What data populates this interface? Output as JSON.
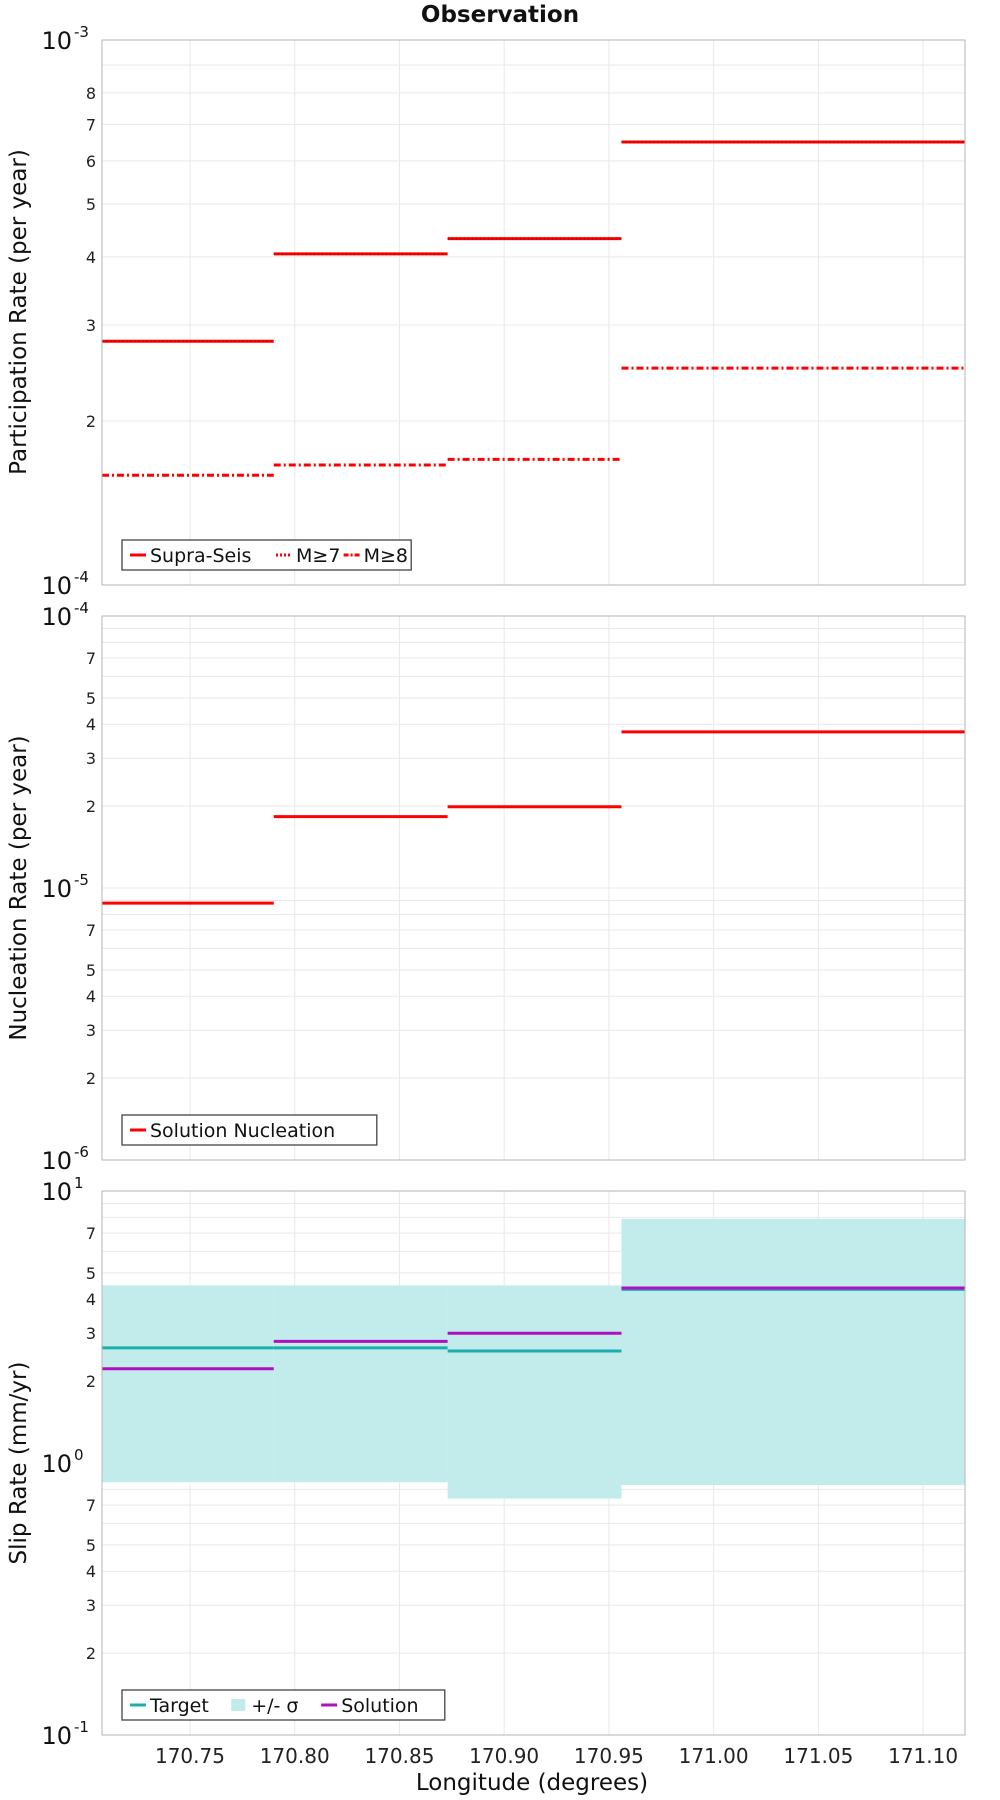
{
  "title": "Observation",
  "xlabel": "Longitude (degrees)",
  "x_ticks": [
    "170.75",
    "170.80",
    "170.85",
    "170.90",
    "170.95",
    "171.00",
    "171.05",
    "171.10"
  ],
  "chart_data": [
    {
      "type": "line",
      "ylabel": "Participation Rate (per year)",
      "yscale": "log",
      "xlim": [
        170.708,
        171.12
      ],
      "ylim": [
        0.0001,
        0.001
      ],
      "grid": true,
      "legend_position": "bottom-left",
      "y_tick_labels": {
        "minor": [
          "2",
          "3",
          "4",
          "5",
          "6",
          "7",
          "8"
        ],
        "top_base": "10",
        "top_exp": "-3",
        "bottom_base": "10",
        "bottom_exp": "-4"
      },
      "legend": [
        "Supra-Seis",
        "M≥7",
        "M≥8"
      ],
      "series": [
        {
          "name": "Supra-Seis",
          "color": "#ff0000",
          "style": "solid",
          "x": [
            [
              170.708,
              170.79
            ],
            [
              170.79,
              170.873
            ],
            [
              170.873,
              170.956
            ],
            [
              170.956,
              171.12
            ]
          ],
          "values": [
            0.00028,
            0.000405,
            0.000432,
            0.00065
          ]
        },
        {
          "name": "M≥7",
          "color": "#ff0000",
          "style": "dotted",
          "x": [
            [
              170.708,
              170.79
            ],
            [
              170.79,
              170.873
            ],
            [
              170.873,
              170.956
            ],
            [
              170.956,
              171.12
            ]
          ],
          "values": [
            0.00028,
            0.000405,
            0.000432,
            0.00065
          ]
        },
        {
          "name": "M≥8",
          "color": "#ff0000",
          "style": "dashdot",
          "x": [
            [
              170.708,
              170.79
            ],
            [
              170.79,
              170.873
            ],
            [
              170.873,
              170.956
            ],
            [
              170.956,
              171.12
            ]
          ],
          "values": [
            0.000159,
            0.000166,
            0.00017,
            0.00025
          ]
        }
      ]
    },
    {
      "type": "line",
      "ylabel": "Nucleation Rate (per year)",
      "yscale": "log",
      "xlim": [
        170.708,
        171.12
      ],
      "ylim": [
        1e-06,
        0.0001
      ],
      "grid": true,
      "legend_position": "bottom-left",
      "y_tick_labels": {
        "minor": [
          "2",
          "3",
          "4",
          "5",
          "7",
          "2",
          "3",
          "4",
          "5",
          "7"
        ],
        "top_base": "10",
        "top_exp": "-4",
        "mid_base": "10",
        "mid_exp": "-5",
        "bottom_base": "10",
        "bottom_exp": "-6"
      },
      "legend": [
        "Solution Nucleation"
      ],
      "series": [
        {
          "name": "Solution Nucleation",
          "color": "#ff0000",
          "style": "solid",
          "x": [
            [
              170.708,
              170.79
            ],
            [
              170.79,
              170.873
            ],
            [
              170.873,
              170.956
            ],
            [
              170.956,
              171.12
            ]
          ],
          "values": [
            8.8e-06,
            1.83e-05,
            1.99e-05,
            3.75e-05
          ]
        }
      ]
    },
    {
      "type": "line",
      "ylabel": "Slip Rate (mm/yr)",
      "yscale": "log",
      "xlim": [
        170.708,
        171.12
      ],
      "ylim": [
        0.1,
        10
      ],
      "grid": true,
      "legend_position": "bottom-left",
      "y_tick_labels": {
        "minor": [
          "2",
          "3",
          "4",
          "5",
          "7",
          "2",
          "3",
          "4",
          "5",
          "7"
        ],
        "top_base": "10",
        "top_exp": "1",
        "mid_base": "10",
        "mid_exp": "0",
        "bottom_base": "10",
        "bottom_exp": "-1"
      },
      "legend": [
        "Target",
        "+/- σ",
        "Solution"
      ],
      "series": [
        {
          "name": "Target",
          "color": "#1aaeae",
          "style": "solid",
          "x": [
            [
              170.708,
              170.79
            ],
            [
              170.79,
              170.873
            ],
            [
              170.873,
              170.956
            ],
            [
              170.956,
              171.12
            ]
          ],
          "values": [
            2.65,
            2.65,
            2.58,
            4.35
          ]
        },
        {
          "name": "+/- σ",
          "color": "#c2ebeb",
          "style": "band",
          "x": [
            [
              170.708,
              170.79
            ],
            [
              170.79,
              170.873
            ],
            [
              170.873,
              170.956
            ],
            [
              170.956,
              171.12
            ]
          ],
          "upper": [
            4.5,
            4.5,
            4.5,
            7.9
          ],
          "lower": [
            0.85,
            0.85,
            0.74,
            0.83
          ]
        },
        {
          "name": "Solution",
          "color": "#b010c0",
          "style": "solid",
          "x": [
            [
              170.708,
              170.79
            ],
            [
              170.79,
              170.873
            ],
            [
              170.873,
              170.956
            ],
            [
              170.956,
              171.12
            ]
          ],
          "values": [
            2.22,
            2.8,
            3.0,
            4.4
          ]
        }
      ]
    }
  ]
}
